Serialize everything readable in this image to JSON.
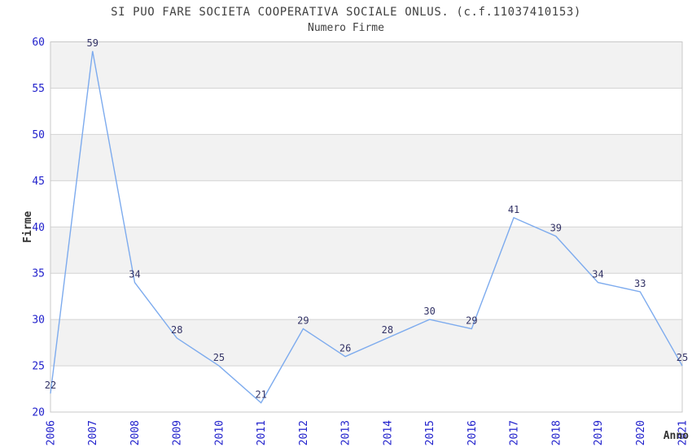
{
  "chart_data": {
    "type": "line",
    "title": "SI PUO FARE SOCIETA COOPERATIVA SOCIALE ONLUS. (c.f.11037410153)",
    "subtitle": "Numero Firme",
    "xlabel": "Anno",
    "ylabel": "Firme",
    "x": [
      2006,
      2007,
      2008,
      2009,
      2010,
      2011,
      2012,
      2013,
      2014,
      2015,
      2016,
      2017,
      2018,
      2019,
      2020,
      2021
    ],
    "series": [
      {
        "name": "Numero Firme",
        "values": [
          22,
          59,
          34,
          28,
          25,
          21,
          29,
          26,
          28,
          30,
          29,
          41,
          39,
          34,
          33,
          25
        ]
      }
    ],
    "data_labels": true,
    "markers": false,
    "ylim": [
      20,
      60
    ],
    "ytick_step": 5,
    "yticks": [
      20,
      25,
      30,
      35,
      40,
      45,
      50,
      55,
      60
    ],
    "grid": "horizontal",
    "bands": "alternating-gray",
    "legend": "none",
    "colors": {
      "line": "#7dabee",
      "tick_label": "#2222cc",
      "data_label": "#333366",
      "band": "#f2f2f2",
      "grid": "#d4d4d4",
      "border": "#c8c8c8",
      "title": "#404040",
      "axis_title": "#333333",
      "background": "#ffffff"
    }
  }
}
